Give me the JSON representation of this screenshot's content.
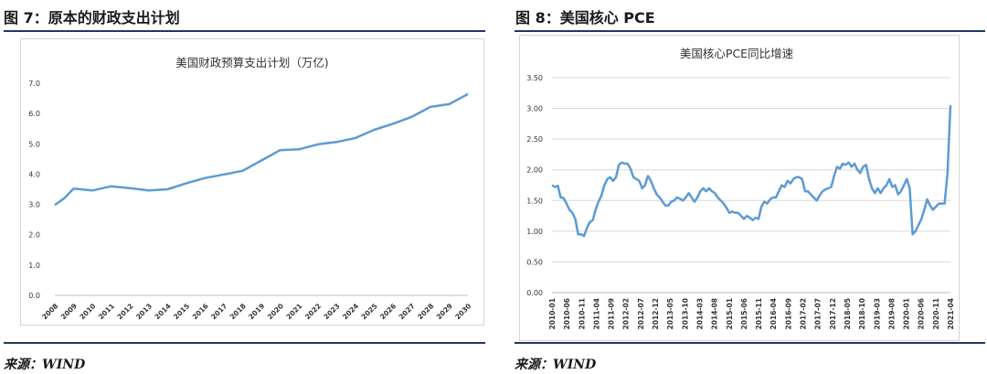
{
  "figures": [
    {
      "title": "图 7：原本的财政支出计划",
      "source": "来源：WIND"
    },
    {
      "title": "图 8：美国核心 PCE",
      "source": "来源：WIND"
    }
  ],
  "colors": {
    "line": "#5b9bd5",
    "rule": "#1f3864",
    "grid": "#d9d9d9",
    "axis": "#bfbfbf"
  },
  "chart_data": [
    {
      "type": "line",
      "title": "美国财政预算支出计划（万亿)",
      "xlabel": "",
      "ylabel": "",
      "ylim": [
        0.0,
        7.0
      ],
      "yticks": [
        "0.0",
        "1.0",
        "2.0",
        "3.0",
        "4.0",
        "5.0",
        "6.0",
        "7.0"
      ],
      "grid": false,
      "categories": [
        "2008",
        "2009",
        "2010",
        "2011",
        "2012",
        "2013",
        "2014",
        "2015",
        "2016",
        "2017",
        "2018",
        "2019",
        "2020",
        "2021",
        "2022",
        "2023",
        "2024",
        "2025",
        "2026",
        "2027",
        "2028",
        "2029",
        "2030"
      ],
      "series": [
        {
          "name": "美国财政预算支出计划",
          "values": [
            2.98,
            3.52,
            3.46,
            3.6,
            3.54,
            3.46,
            3.5,
            3.7,
            3.87,
            3.99,
            4.11,
            4.45,
            4.79,
            4.82,
            4.98,
            5.06,
            5.19,
            5.46,
            5.66,
            5.89,
            6.22,
            6.31,
            6.64
          ]
        }
      ],
      "series_extra": [
        {
          "x": 0.5,
          "value": 3.2
        }
      ]
    },
    {
      "type": "line",
      "title": "美国核心PCE同比增速",
      "xlabel": "",
      "ylabel": "",
      "ylim": [
        0.0,
        3.5
      ],
      "yticks": [
        "0.00",
        "0.50",
        "1.00",
        "1.50",
        "2.00",
        "2.50",
        "3.00",
        "3.50"
      ],
      "grid": true,
      "xticks": [
        "2010-01",
        "2010-06",
        "2010-11",
        "2011-04",
        "2011-09",
        "2012-02",
        "2012-07",
        "2012-12",
        "2013-05",
        "2013-10",
        "2014-03",
        "2014-08",
        "2015-01",
        "2015-06",
        "2015-11",
        "2016-04",
        "2016-09",
        "2017-02",
        "2017-07",
        "2017-12",
        "2018-05",
        "2018-10",
        "2019-03",
        "2019-08",
        "2020-01",
        "2020-06",
        "2020-11",
        "2021-04"
      ],
      "series": [
        {
          "name": "美国核心PCE同比增速",
          "values": [
            1.75,
            1.72,
            1.74,
            1.55,
            1.54,
            1.45,
            1.35,
            1.3,
            1.2,
            0.95,
            0.95,
            0.92,
            1.05,
            1.15,
            1.18,
            1.35,
            1.48,
            1.58,
            1.75,
            1.85,
            1.88,
            1.82,
            1.88,
            2.08,
            2.12,
            2.1,
            2.1,
            2.02,
            1.88,
            1.85,
            1.82,
            1.7,
            1.75,
            1.9,
            1.82,
            1.7,
            1.6,
            1.55,
            1.48,
            1.42,
            1.42,
            1.48,
            1.5,
            1.55,
            1.53,
            1.5,
            1.55,
            1.62,
            1.55,
            1.48,
            1.55,
            1.65,
            1.7,
            1.65,
            1.7,
            1.65,
            1.62,
            1.55,
            1.5,
            1.45,
            1.38,
            1.3,
            1.32,
            1.3,
            1.3,
            1.25,
            1.2,
            1.25,
            1.22,
            1.18,
            1.22,
            1.2,
            1.4,
            1.48,
            1.45,
            1.52,
            1.55,
            1.55,
            1.65,
            1.75,
            1.72,
            1.82,
            1.78,
            1.85,
            1.88,
            1.88,
            1.85,
            1.65,
            1.65,
            1.6,
            1.55,
            1.5,
            1.58,
            1.65,
            1.68,
            1.7,
            1.72,
            1.9,
            2.05,
            2.02,
            2.1,
            2.08,
            2.12,
            2.05,
            2.1,
            2.0,
            1.95,
            2.05,
            2.08,
            1.85,
            1.7,
            1.62,
            1.7,
            1.62,
            1.7,
            1.75,
            1.85,
            1.72,
            1.75,
            1.6,
            1.65,
            1.75,
            1.85,
            1.7,
            0.95,
            1.0,
            1.1,
            1.2,
            1.35,
            1.52,
            1.42,
            1.35,
            1.4,
            1.45,
            1.45,
            1.45,
            1.95,
            3.05
          ]
        }
      ]
    }
  ]
}
